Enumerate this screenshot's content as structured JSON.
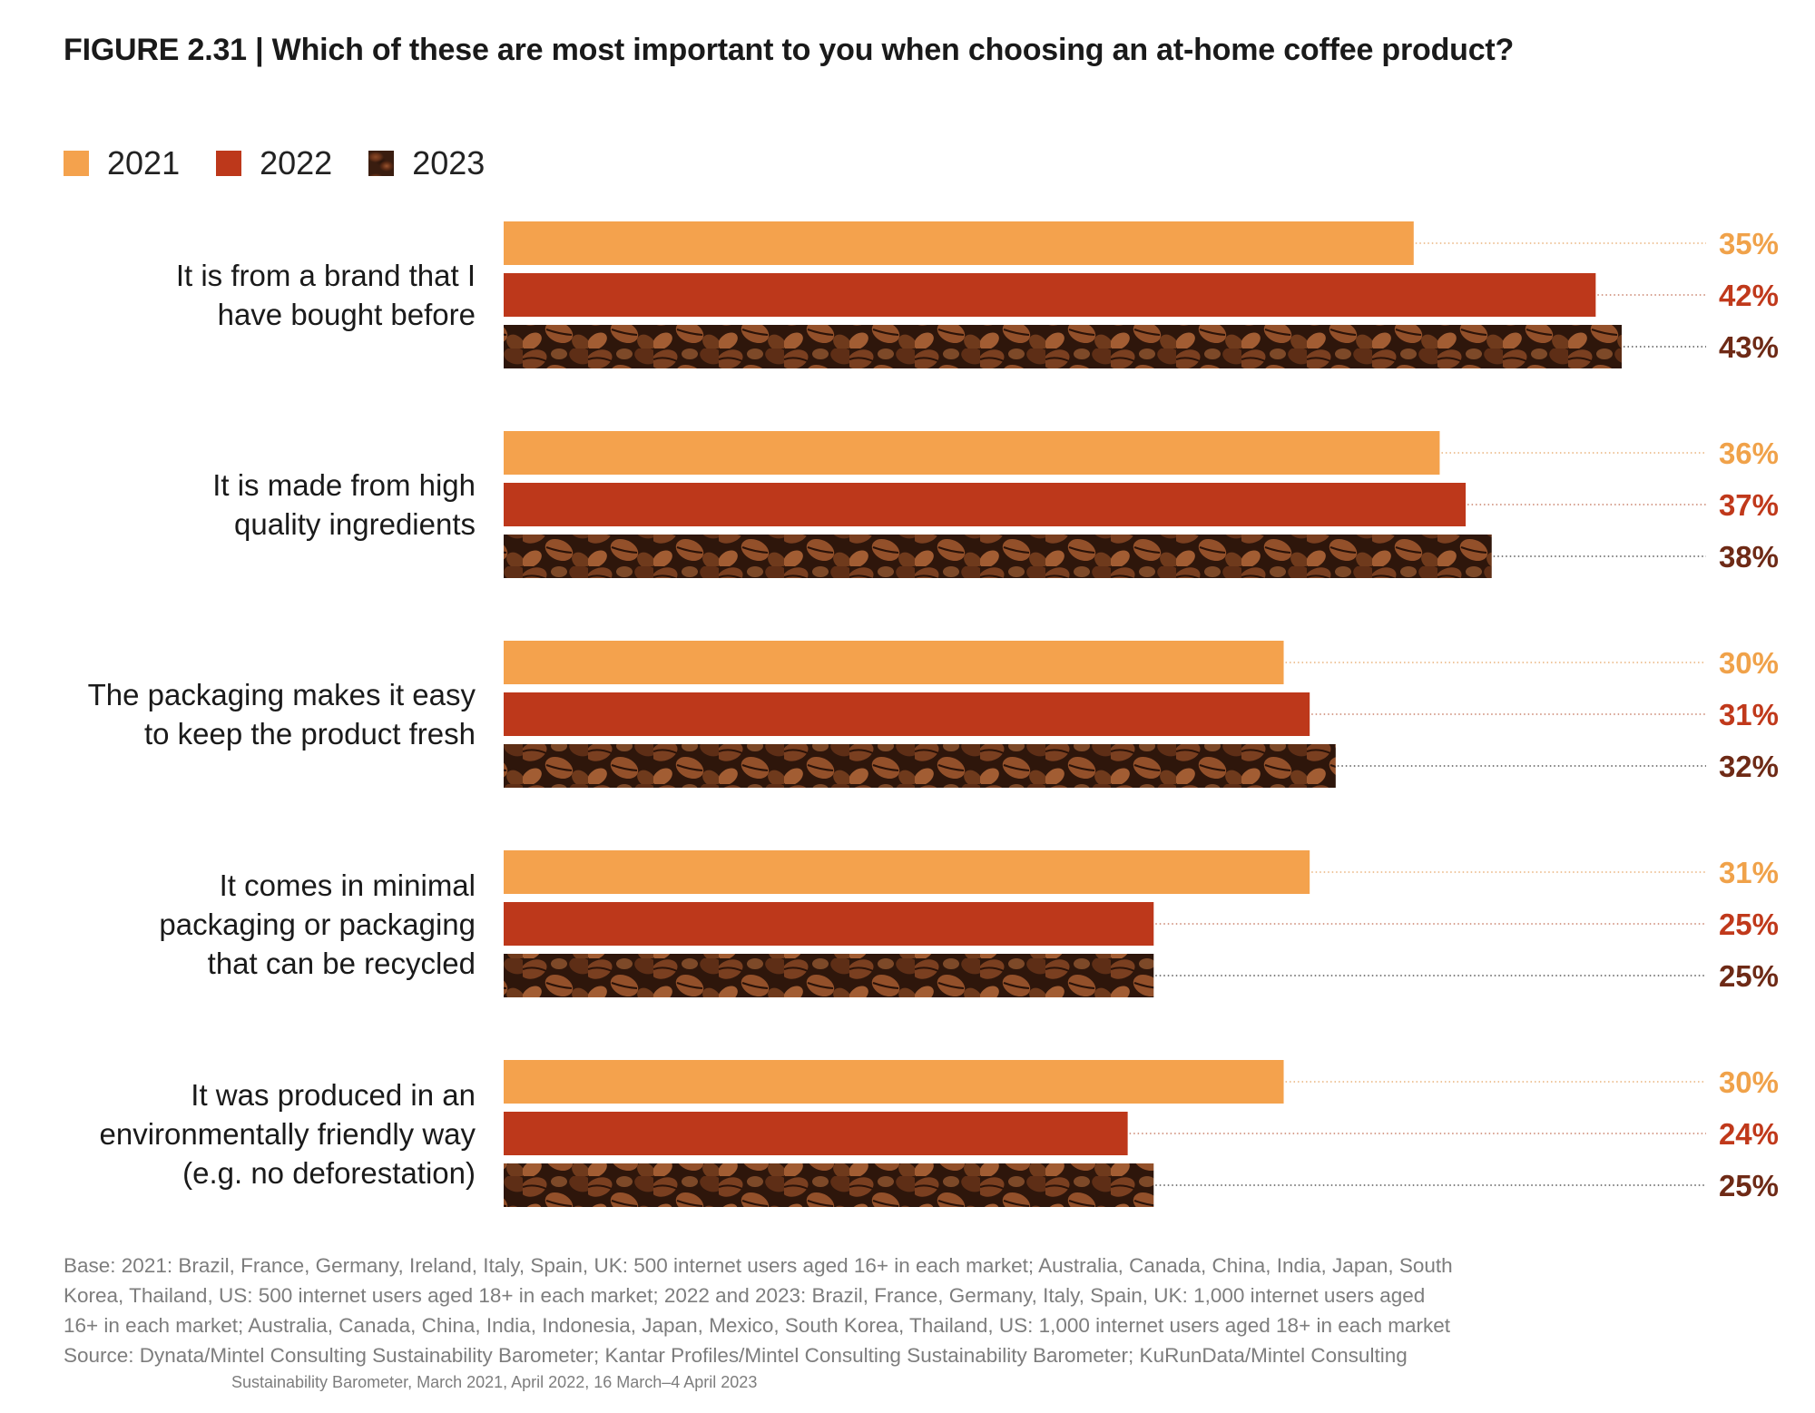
{
  "title": "FIGURE 2.31 | Which of these are most important to you when choosing an at-home coffee product?",
  "legend": [
    {
      "label": "2021",
      "color": "#F4A24D"
    },
    {
      "label": "2022",
      "color": "#BD381B"
    },
    {
      "label": "2023",
      "color": "#5A2E18"
    }
  ],
  "chart_data": {
    "type": "bar",
    "orientation": "horizontal",
    "title": "FIGURE 2.31 | Which of these are most important to you when choosing an at-home coffee product?",
    "categories": [
      "It is from a brand that I have bought before",
      "It is made from high quality ingredients",
      "The packaging makes it easy to keep the product fresh",
      "It comes in minimal packaging or packaging that can be recycled",
      "It was produced in an environmentally friendly way (e.g. no deforestation)"
    ],
    "series": [
      {
        "name": "2021",
        "values": [
          35,
          36,
          30,
          31,
          30
        ],
        "labels": [
          "35%",
          "36%",
          "30%",
          "31%",
          "30%"
        ],
        "color": "#F4A24D"
      },
      {
        "name": "2022",
        "values": [
          42,
          37,
          31,
          25,
          24
        ],
        "labels": [
          "42%",
          "37%",
          "31%",
          "25%",
          "24%"
        ],
        "color": "#BD381B"
      },
      {
        "name": "2023",
        "values": [
          43,
          38,
          32,
          25,
          25
        ],
        "labels": [
          "43%",
          "38%",
          "32%",
          "25%",
          "25%"
        ],
        "color": "#6E2A16"
      }
    ],
    "xlabel": "",
    "ylabel": "",
    "unit": "%",
    "xlim": [
      0,
      43
    ],
    "legend_position": "top-left",
    "grid": false
  },
  "category_label_lines": [
    [
      "It is from a brand that I",
      "have bought before"
    ],
    [
      "It is made from high",
      "quality ingredients"
    ],
    [
      "The packaging makes it easy",
      "to keep the product fresh"
    ],
    [
      "It comes in minimal",
      "packaging or packaging",
      "that can be recycled"
    ],
    [
      "It was produced in an",
      "environmentally friendly way",
      "(e.g. no deforestation)"
    ]
  ],
  "footnote": {
    "lines": [
      "Base: 2021: Brazil, France, Germany, Ireland, Italy, Spain, UK: 500 internet users aged 16+ in each market; Australia, Canada, China, India, Japan, South",
      "Korea, Thailand, US: 500 internet users aged 18+ in each market; 2022 and 2023: Brazil, France, Germany, Italy, Spain, UK: 1,000 internet users aged",
      "16+ in each market; Australia, Canada, China, India, Indonesia, Japan, Mexico, South Korea, Thailand, US: 1,000 internet users aged 18+ in each market",
      "Source: Dynata/Mintel Consulting Sustainability Barometer; Kantar Profiles/Mintel Consulting Sustainability Barometer; KuRunData/Mintel Consulting"
    ],
    "last_line": "Sustainability Barometer, March 2021, April 2022, 16 March–4 April 2023"
  }
}
